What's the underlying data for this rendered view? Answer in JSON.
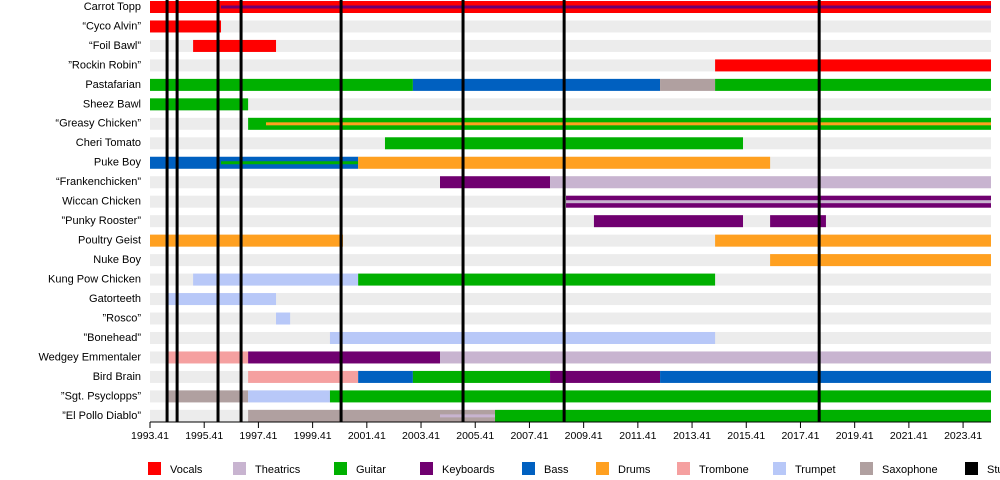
{
  "chart_data": {
    "type": "timeline",
    "xlim": [
      1993.41,
      2024.44
    ],
    "xticks": [
      1993.41,
      1995.41,
      1997.41,
      1999.41,
      2001.41,
      2003.41,
      2005.41,
      2007.41,
      2009.41,
      2011.41,
      2013.41,
      2015.41,
      2017.41,
      2019.41,
      2021.41,
      2023.41
    ],
    "series": [
      {
        "name": "Vocals",
        "color": "#ff0000"
      },
      {
        "name": "Theatrics",
        "color": "#c8b4d0"
      },
      {
        "name": "Guitar",
        "color": "#00b000"
      },
      {
        "name": "Keyboards",
        "color": "#700070"
      },
      {
        "name": "Bass",
        "color": "#0060c0"
      },
      {
        "name": "Drums",
        "color": "#ffa020"
      },
      {
        "name": "Trombone",
        "color": "#f5a0a0"
      },
      {
        "name": "Trumpet",
        "color": "#b8c8f8"
      },
      {
        "name": "Saxophone",
        "color": "#b0a0a0"
      }
    ],
    "albums": {
      "name": "Studio albums",
      "color": "#000000",
      "values": [
        1994.04,
        1994.41,
        1995.92,
        1996.77,
        2000.46,
        2004.96,
        2008.69,
        2018.1
      ]
    },
    "rows": [
      {
        "name": "Carrot Topp",
        "segments": [
          {
            "role": 0,
            "start": 1993.41,
            "end": 2024.44
          },
          {
            "role": 3,
            "start": 1996.03,
            "end": 2024.44,
            "thin": true
          }
        ]
      },
      {
        "name": "“Cyco Alvin”",
        "segments": [
          {
            "role": 0,
            "start": 1993.41,
            "end": 1996.03
          }
        ]
      },
      {
        "name": "“Foil Bawl”",
        "segments": [
          {
            "role": 0,
            "start": 1995.0,
            "end": 1998.06
          }
        ]
      },
      {
        "name": "”Rockin Robin”",
        "segments": [
          {
            "role": 0,
            "start": 2014.26,
            "end": 2024.44
          }
        ]
      },
      {
        "name": "Pastafarian",
        "segments": [
          {
            "role": 2,
            "start": 1993.41,
            "end": 2003.11
          },
          {
            "role": 4,
            "start": 2003.11,
            "end": 2012.23
          },
          {
            "role": 8,
            "start": 2012.23,
            "end": 2014.26
          },
          {
            "role": 2,
            "start": 2014.26,
            "end": 2024.44
          }
        ]
      },
      {
        "name": "Sheez Bawl",
        "segments": [
          {
            "role": 2,
            "start": 1993.41,
            "end": 1997.03
          }
        ]
      },
      {
        "name": "“Greasy Chicken”",
        "segments": [
          {
            "role": 2,
            "start": 1997.03,
            "end": 2024.44
          },
          {
            "role": 5,
            "start": 1997.69,
            "end": 2024.44,
            "thin": true
          }
        ]
      },
      {
        "name": "Cheri Tomato",
        "segments": [
          {
            "role": 2,
            "start": 2002.08,
            "end": 2015.29
          }
        ]
      },
      {
        "name": "Puke Boy",
        "segments": [
          {
            "role": 4,
            "start": 1993.41,
            "end": 2001.09
          },
          {
            "role": 2,
            "start": 1996.03,
            "end": 2001.09,
            "thin": true
          },
          {
            "role": 5,
            "start": 2001.09,
            "end": 2016.29
          }
        ]
      },
      {
        "name": "“Frankenchicken”",
        "segments": [
          {
            "role": 3,
            "start": 2004.11,
            "end": 2008.17
          },
          {
            "role": 1,
            "start": 2008.17,
            "end": 2024.44
          }
        ]
      },
      {
        "name": "Wiccan Chicken",
        "segments": [
          {
            "role": 3,
            "start": 2008.76,
            "end": 2024.44
          },
          {
            "role": 1,
            "start": 2008.76,
            "end": 2024.44,
            "thin": true
          }
        ]
      },
      {
        "name": "”Punky Rooster”",
        "segments": [
          {
            "role": 3,
            "start": 2009.79,
            "end": 2015.29
          },
          {
            "role": 3,
            "start": 2016.29,
            "end": 2018.35
          }
        ]
      },
      {
        "name": "Poultry Geist",
        "segments": [
          {
            "role": 5,
            "start": 1993.41,
            "end": 2000.53
          },
          {
            "role": 5,
            "start": 2014.26,
            "end": 2024.44
          }
        ]
      },
      {
        "name": "Nuke Boy",
        "segments": [
          {
            "role": 5,
            "start": 2016.29,
            "end": 2024.44
          }
        ]
      },
      {
        "name": "Kung Pow Chicken",
        "segments": [
          {
            "role": 7,
            "start": 1995.0,
            "end": 2001.09
          },
          {
            "role": 2,
            "start": 2001.09,
            "end": 2014.26
          }
        ]
      },
      {
        "name": "Gatorteeth",
        "segments": [
          {
            "role": 7,
            "start": 1994.0,
            "end": 1998.06
          }
        ]
      },
      {
        "name": "”Rosco”",
        "segments": [
          {
            "role": 7,
            "start": 1998.06,
            "end": 1998.58
          }
        ]
      },
      {
        "name": "”Bonehead”",
        "segments": [
          {
            "role": 7,
            "start": 2000.05,
            "end": 2014.26
          }
        ]
      },
      {
        "name": "Wedgey Emmentaler",
        "segments": [
          {
            "role": 6,
            "start": 1994.0,
            "end": 1997.03
          },
          {
            "role": 3,
            "start": 1997.03,
            "end": 2004.11
          },
          {
            "role": 1,
            "start": 2004.11,
            "end": 2024.44
          }
        ]
      },
      {
        "name": "Bird Brain",
        "segments": [
          {
            "role": 6,
            "start": 1997.03,
            "end": 2001.09
          },
          {
            "role": 4,
            "start": 2001.09,
            "end": 2003.11
          },
          {
            "role": 2,
            "start": 2003.11,
            "end": 2008.17
          },
          {
            "role": 3,
            "start": 2008.17,
            "end": 2012.23
          },
          {
            "role": 4,
            "start": 2012.23,
            "end": 2024.44
          }
        ]
      },
      {
        "name": "”Sgt. Psyclopps”",
        "segments": [
          {
            "role": 8,
            "start": 1994.0,
            "end": 1997.03
          },
          {
            "role": 7,
            "start": 1997.03,
            "end": 2000.05
          },
          {
            "role": 2,
            "start": 2000.05,
            "end": 2024.44
          }
        ]
      },
      {
        "name": "”El Pollo Diablo”",
        "segments": [
          {
            "role": 8,
            "start": 1997.03,
            "end": 2006.14
          },
          {
            "role": 1,
            "start": 2004.11,
            "end": 2006.14,
            "thin": true
          },
          {
            "role": 2,
            "start": 2006.14,
            "end": 2024.44
          }
        ]
      }
    ]
  }
}
